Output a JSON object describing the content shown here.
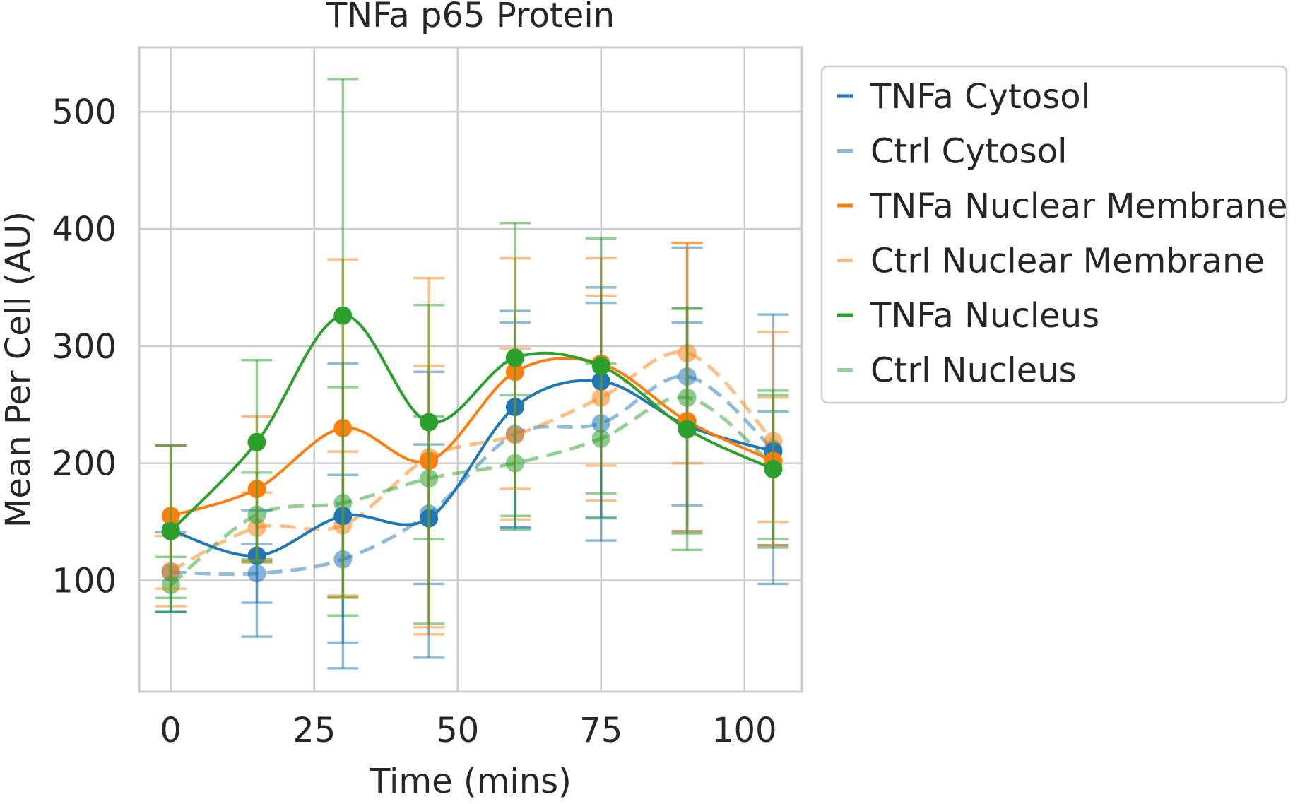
{
  "chart_data": {
    "type": "line",
    "title": "TNFa p65 Protein",
    "xlabel": "Time (mins)",
    "ylabel": "Mean Per Cell (AU)",
    "xlim": [
      -5.5,
      110
    ],
    "ylim": [
      5,
      555
    ],
    "xticks": [
      0,
      25,
      50,
      75,
      100
    ],
    "yticks": [
      100,
      200,
      300,
      400,
      500
    ],
    "grid": true,
    "legend_position": "outside right",
    "x": [
      0,
      15,
      30,
      45,
      60,
      75,
      90,
      105
    ],
    "series": [
      {
        "name": "TNFa Cytosol",
        "color": "#1f77b4",
        "style": "solid",
        "values": [
          143,
          121,
          155,
          153,
          248,
          270,
          232,
          210
        ],
        "err_low": [
          73,
          52,
          25,
          34,
          145,
          134,
          142,
          97
        ],
        "err_high": [
          215,
          160,
          285,
          278,
          330,
          350,
          320,
          327
        ]
      },
      {
        "name": "Ctrl Cytosol",
        "color": "#1f77b4",
        "style": "dashed",
        "values": [
          107,
          106,
          118,
          157,
          225,
          234,
          274,
          212
        ],
        "err_low": [
          73,
          81,
          47,
          97,
          145,
          154,
          164,
          130
        ],
        "err_high": [
          141,
          131,
          190,
          216,
          320,
          337,
          384,
          244
        ]
      },
      {
        "name": "TNFa Nuclear Membrane",
        "color": "#ff7f0e",
        "style": "solid",
        "values": [
          155,
          178,
          230,
          202,
          278,
          285,
          236,
          202
        ],
        "err_low": [
          93,
          117,
          85,
          60,
          178,
          198,
          142,
          130
        ],
        "err_high": [
          215,
          240,
          374,
          358,
          375,
          375,
          388,
          312
        ]
      },
      {
        "name": "Ctrl Nuclear Membrane",
        "color": "#ff7f0e",
        "style": "dashed",
        "values": [
          108,
          145,
          147,
          205,
          224,
          256,
          294,
          219
        ],
        "err_low": [
          78,
          115,
          87,
          54,
          152,
          168,
          200,
          150
        ],
        "err_high": [
          138,
          175,
          210,
          283,
          298,
          343,
          388,
          256
        ]
      },
      {
        "name": "TNFa Nucleus",
        "color": "#2ca02c",
        "style": "solid",
        "values": [
          142,
          218,
          326,
          235,
          290,
          283,
          229,
          195
        ],
        "err_low": [
          73,
          116,
          86,
          63,
          143,
          174,
          126,
          135
        ],
        "err_high": [
          215,
          288,
          528,
          335,
          405,
          392,
          332,
          262
        ]
      },
      {
        "name": "Ctrl Nucleus",
        "color": "#2ca02c",
        "style": "dashed",
        "values": [
          96,
          156,
          166,
          187,
          200,
          221,
          256,
          198
        ],
        "err_low": [
          85,
          118,
          70,
          135,
          155,
          153,
          140,
          128
        ],
        "err_high": [
          120,
          192,
          265,
          240,
          258,
          285,
          332,
          258
        ]
      }
    ]
  }
}
